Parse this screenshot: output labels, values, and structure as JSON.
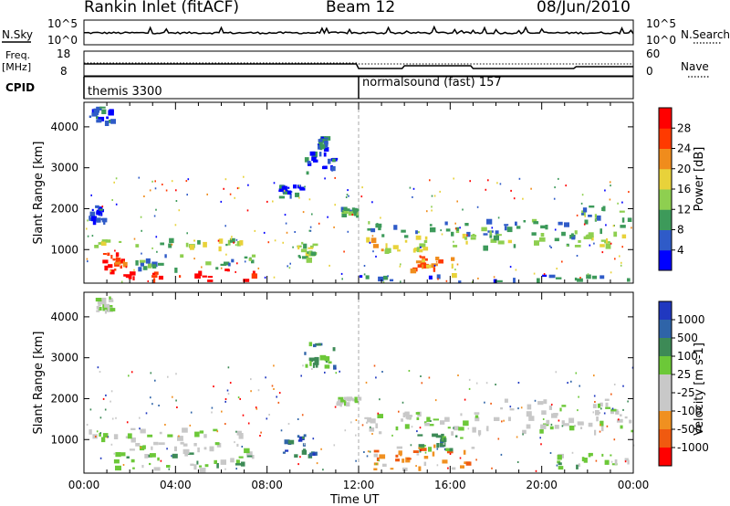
{
  "header": {
    "station": "Rankin Inlet (fitACF)",
    "beam": "Beam 12",
    "date": "08/Jun/2010"
  },
  "strip": {
    "nsky_label": "N.Sky",
    "nsearch_label": "N.Search",
    "nsky_ticks": [
      "10^5",
      "10^0"
    ],
    "freq_label": "Freq.",
    "freq_unit": "[MHz]",
    "freq_ticks": [
      "18",
      "8"
    ],
    "nave_label": "Nave",
    "nave_ticks": [
      "60",
      "0"
    ],
    "cpid_label": "CPID",
    "cpid_modes": [
      {
        "name": "themis 3300",
        "start_hour": 0
      },
      {
        "name": "normalsound (fast) 157",
        "start_hour": 12
      }
    ]
  },
  "chart_data": [
    {
      "type": "heatmap",
      "name": "power",
      "ylabel": "Slant Range [km]",
      "ylim": [
        180,
        4600
      ],
      "yticks": [
        1000,
        2000,
        3000,
        4000
      ],
      "xlim": [
        0,
        24
      ],
      "colorbar": {
        "label": "Power [dB]",
        "ticks": [
          "4",
          "8",
          "12",
          "16",
          "20",
          "24",
          "28"
        ],
        "colors": [
          "#0000ff",
          "#2f5bc8",
          "#3d9a5a",
          "#8ecf50",
          "#e8d23a",
          "#f08c1c",
          "#ff3a00",
          "#ff0000"
        ]
      },
      "regions": [
        {
          "t0": 0.2,
          "t1": 1.2,
          "r0": 4150,
          "r1": 4500,
          "level": 1
        },
        {
          "t0": 0,
          "t1": 7,
          "r0": 1050,
          "r1": 1300,
          "level": 3
        },
        {
          "t0": 0.2,
          "t1": 0.9,
          "r0": 1700,
          "r1": 2100,
          "level": 1
        },
        {
          "t0": 1.2,
          "t1": 7.6,
          "r0": 200,
          "r1": 550,
          "level": 7
        },
        {
          "t0": 0.8,
          "t1": 1.8,
          "r0": 500,
          "r1": 950,
          "level": 6
        },
        {
          "t0": 2,
          "t1": 7.5,
          "r0": 550,
          "r1": 900,
          "level": 2
        },
        {
          "t0": 8.5,
          "t1": 9.5,
          "r0": 2300,
          "r1": 2600,
          "level": 1
        },
        {
          "t0": 9.6,
          "t1": 11,
          "r0": 2800,
          "r1": 3400,
          "level": 1
        },
        {
          "t0": 10.2,
          "t1": 10.6,
          "r0": 3500,
          "r1": 3800,
          "level": 1
        },
        {
          "t0": 9.3,
          "t1": 10,
          "r0": 800,
          "r1": 1200,
          "level": 3
        },
        {
          "t0": 12.2,
          "t1": 15,
          "r0": 1000,
          "r1": 1350,
          "level": 4
        },
        {
          "t0": 12.2,
          "t1": 16.5,
          "r0": 1350,
          "r1": 1700,
          "level": 2
        },
        {
          "t0": 14,
          "t1": 16.5,
          "r0": 400,
          "r1": 900,
          "level": 5
        },
        {
          "t0": 16.5,
          "t1": 21.5,
          "r0": 1350,
          "r1": 1800,
          "level": 2
        },
        {
          "t0": 16,
          "t1": 23.9,
          "r0": 1100,
          "r1": 1400,
          "level": 3
        },
        {
          "t0": 21.7,
          "t1": 23.9,
          "r0": 1400,
          "r1": 2100,
          "level": 2
        },
        {
          "t0": 11.2,
          "t1": 11.9,
          "r0": 1900,
          "r1": 2050,
          "level": 2
        },
        {
          "t0": 12,
          "t1": 23.9,
          "r0": 200,
          "r1": 400,
          "level": 1
        }
      ]
    },
    {
      "type": "heatmap",
      "name": "velocity",
      "ylabel": "Slant Range [km]",
      "xlabel": "Time UT",
      "ylim": [
        180,
        4600
      ],
      "yticks": [
        1000,
        2000,
        3000,
        4000
      ],
      "xlim": [
        0,
        24
      ],
      "xticks": [
        "00:00",
        "04:00",
        "08:00",
        "12:00",
        "16:00",
        "20:00",
        "00:00"
      ],
      "colorbar": {
        "label": "Velocity [m s-1]",
        "ticks": [
          "1000",
          "500",
          "100",
          "25",
          "-25",
          "-100",
          "-500",
          "-1000"
        ],
        "colors": [
          "#2038c0",
          "#2f64a8",
          "#3d8a56",
          "#6cc838",
          "#c8c8c8",
          "#c8c8c8",
          "#f09020",
          "#f05a10",
          "#ff0000"
        ]
      },
      "regions": [
        {
          "t0": 0.2,
          "t1": 1.2,
          "r0": 4150,
          "r1": 4500,
          "level": 4
        },
        {
          "t0": 0,
          "t1": 7,
          "r0": 1050,
          "r1": 1300,
          "level": 4
        },
        {
          "t0": 1,
          "t1": 7.5,
          "r0": 300,
          "r1": 700,
          "level": 3
        },
        {
          "t0": 1.5,
          "t1": 7.2,
          "r0": 700,
          "r1": 950,
          "level": 4
        },
        {
          "t0": 9.6,
          "t1": 11,
          "r0": 2800,
          "r1": 3400,
          "level": 2
        },
        {
          "t0": 8.6,
          "t1": 10,
          "r0": 600,
          "r1": 1400,
          "level": 1
        },
        {
          "t0": 12.2,
          "t1": 23.9,
          "r0": 1200,
          "r1": 1700,
          "level": 4
        },
        {
          "t0": 12.5,
          "t1": 17,
          "r0": 300,
          "r1": 900,
          "level": 6
        },
        {
          "t0": 14.5,
          "t1": 16.5,
          "r0": 700,
          "r1": 1200,
          "level": 2
        },
        {
          "t0": 18,
          "t1": 23.5,
          "r0": 1700,
          "r1": 2000,
          "level": 4
        },
        {
          "t0": 20.5,
          "t1": 23.9,
          "r0": 300,
          "r1": 700,
          "level": 3
        },
        {
          "t0": 11,
          "t1": 12,
          "r0": 1900,
          "r1": 2050,
          "level": 4
        }
      ]
    }
  ]
}
